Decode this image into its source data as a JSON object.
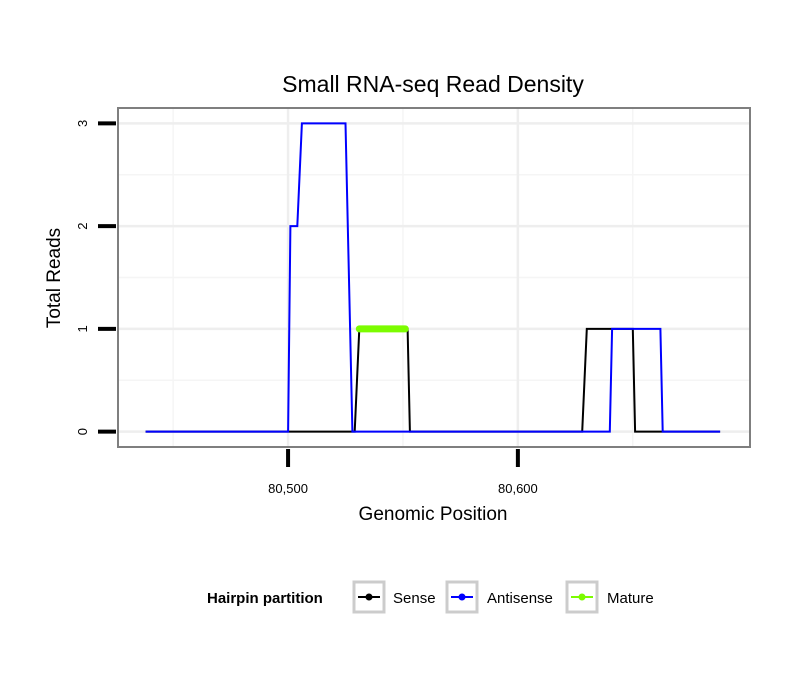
{
  "chart_data": {
    "type": "line",
    "title": "Small RNA-seq Read Density",
    "xlabel": "Genomic Position",
    "ylabel": "Total Reads",
    "xlim": [
      80426,
      80701
    ],
    "ylim": [
      -0.15,
      3.15
    ],
    "x_ticks": [
      {
        "value": 80500,
        "label": "80,500"
      },
      {
        "value": 80600,
        "label": "80,600"
      }
    ],
    "x_minor_gridlines": [
      80450,
      80550,
      80650
    ],
    "y_ticks": [
      {
        "value": 0,
        "label": "0"
      },
      {
        "value": 1,
        "label": "1"
      },
      {
        "value": 2,
        "label": "2"
      },
      {
        "value": 3,
        "label": "3"
      }
    ],
    "y_minor_gridlines": [
      0.5,
      1.5,
      2.5
    ],
    "series": [
      {
        "name": "Sense",
        "color": "#000000",
        "x": [
          80438,
          80529,
          80531,
          80552,
          80553,
          80628,
          80630,
          80650,
          80651,
          80688
        ],
        "y": [
          0,
          0,
          1,
          1,
          0,
          0,
          1,
          1,
          0,
          0
        ]
      },
      {
        "name": "Antisense",
        "color": "#0000ff",
        "x": [
          80438,
          80500,
          80501,
          80504,
          80506,
          80525,
          80528,
          80640,
          80641,
          80662,
          80663,
          80688
        ],
        "y": [
          0,
          0,
          2,
          2,
          3,
          3,
          0,
          0,
          1,
          1,
          0,
          0
        ]
      },
      {
        "name": "Mature",
        "color": "#7cfc00",
        "x": [
          80531,
          80551
        ],
        "y": [
          1,
          1
        ]
      }
    ],
    "legend": {
      "title": "Hairpin partition",
      "position": "bottom",
      "entries": [
        {
          "label": "Sense",
          "color": "#000000"
        },
        {
          "label": "Antisense",
          "color": "#0000ff"
        },
        {
          "label": "Mature",
          "color": "#7cfc00"
        }
      ]
    }
  }
}
